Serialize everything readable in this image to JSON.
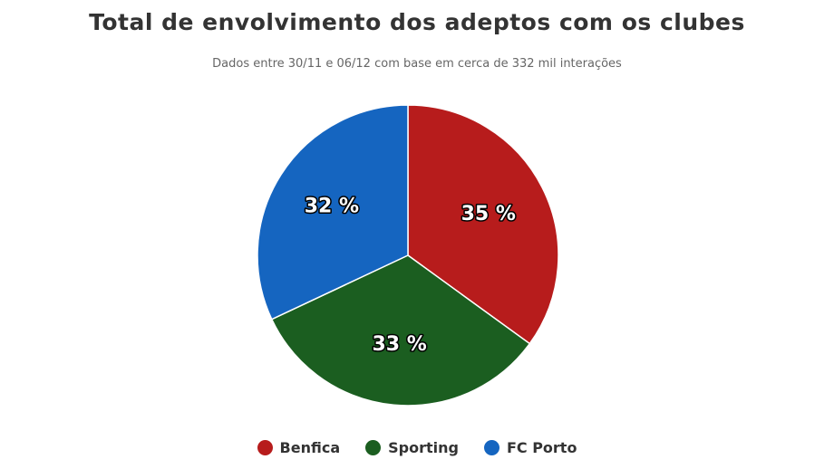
{
  "chart_data": {
    "type": "pie",
    "title": "Total de envolvimento dos adeptos com os clubes",
    "subtitle": "Dados entre 30/11 e 06/12 com base em cerca de 332 mil interações",
    "legend_position": "bottom",
    "slices": [
      {
        "name": "Benfica",
        "value": 35,
        "label": "35 %",
        "color": "#b71c1c"
      },
      {
        "name": "Sporting",
        "value": 33,
        "label": "33 %",
        "color": "#1b5e20"
      },
      {
        "name": "FC Porto",
        "value": 32,
        "label": "32 %",
        "color": "#1565c0"
      }
    ]
  }
}
